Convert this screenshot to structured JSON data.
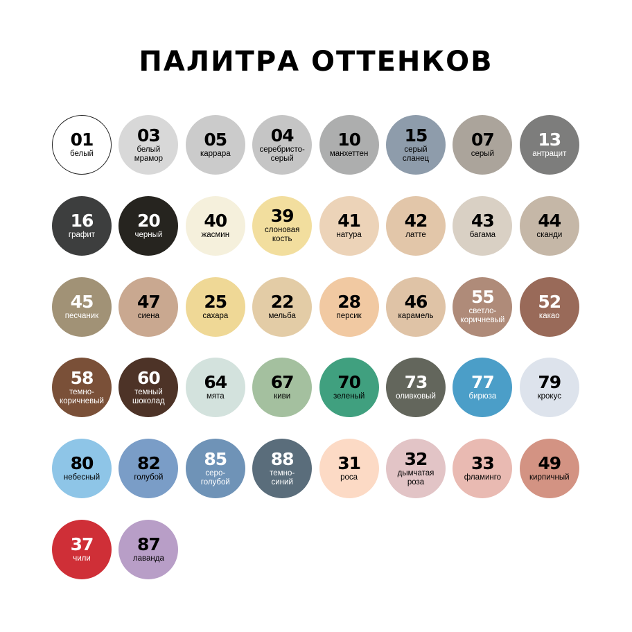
{
  "title": "ПАЛИТРА ОТТЕНКОВ",
  "swatches": [
    {
      "code": "01",
      "name": "белый",
      "color": "#ffffff",
      "text": "#000000"
    },
    {
      "code": "03",
      "name": "белый\nмрамор",
      "color": "#d8d8d8",
      "text": "#000000"
    },
    {
      "code": "05",
      "name": "каррара",
      "color": "#cbcbcb",
      "text": "#000000"
    },
    {
      "code": "04",
      "name": "серебристо-\nсерый",
      "color": "#c5c5c5",
      "text": "#000000"
    },
    {
      "code": "10",
      "name": "манхеттен",
      "color": "#adaeae",
      "text": "#000000"
    },
    {
      "code": "15",
      "name": "серый\nсланец",
      "color": "#8e9cab",
      "text": "#000000"
    },
    {
      "code": "07",
      "name": "серый",
      "color": "#aba49b",
      "text": "#000000"
    },
    {
      "code": "13",
      "name": "антрацит",
      "color": "#7d7d7c",
      "text": "#ffffff"
    },
    {
      "code": "16",
      "name": "графит",
      "color": "#3d3e3e",
      "text": "#ffffff"
    },
    {
      "code": "20",
      "name": "черный",
      "color": "#26241f",
      "text": "#ffffff"
    },
    {
      "code": "40",
      "name": "жасмин",
      "color": "#f5f0dc",
      "text": "#000000"
    },
    {
      "code": "39",
      "name": "слоновая\nкость",
      "color": "#f2de9e",
      "text": "#000000"
    },
    {
      "code": "41",
      "name": "натура",
      "color": "#ecd3b8",
      "text": "#000000"
    },
    {
      "code": "42",
      "name": "латте",
      "color": "#e2c6a9",
      "text": "#000000"
    },
    {
      "code": "43",
      "name": "багама",
      "color": "#d9d0c4",
      "text": "#000000"
    },
    {
      "code": "44",
      "name": "сканди",
      "color": "#c5b7a7",
      "text": "#000000"
    },
    {
      "code": "45",
      "name": "песчаник",
      "color": "#a19276",
      "text": "#ffffff"
    },
    {
      "code": "47",
      "name": "сиена",
      "color": "#c9a890",
      "text": "#000000"
    },
    {
      "code": "25",
      "name": "сахара",
      "color": "#efd896",
      "text": "#000000"
    },
    {
      "code": "22",
      "name": "мельба",
      "color": "#e3cca6",
      "text": "#000000"
    },
    {
      "code": "28",
      "name": "персик",
      "color": "#f1c9a2",
      "text": "#000000"
    },
    {
      "code": "46",
      "name": "карамель",
      "color": "#dfc3a6",
      "text": "#000000"
    },
    {
      "code": "55",
      "name": "светло-\nкоричневый",
      "color": "#af8b79",
      "text": "#ffffff"
    },
    {
      "code": "52",
      "name": "какао",
      "color": "#996a59",
      "text": "#ffffff"
    },
    {
      "code": "58",
      "name": "темно-\nкоричневый",
      "color": "#7a5038",
      "text": "#ffffff"
    },
    {
      "code": "60",
      "name": "темный\nшоколад",
      "color": "#4d3327",
      "text": "#ffffff"
    },
    {
      "code": "64",
      "name": "мята",
      "color": "#d3e2dd",
      "text": "#000000"
    },
    {
      "code": "67",
      "name": "киви",
      "color": "#a4c09f",
      "text": "#000000"
    },
    {
      "code": "70",
      "name": "зеленый",
      "color": "#40a07f",
      "text": "#000000"
    },
    {
      "code": "73",
      "name": "оливковый",
      "color": "#63665c",
      "text": "#ffffff"
    },
    {
      "code": "77",
      "name": "бирюза",
      "color": "#4b9ec8",
      "text": "#ffffff"
    },
    {
      "code": "79",
      "name": "крокус",
      "color": "#dde3ec",
      "text": "#000000"
    },
    {
      "code": "80",
      "name": "небесный",
      "color": "#8ec5e7",
      "text": "#000000"
    },
    {
      "code": "82",
      "name": "голубой",
      "color": "#7a9dc7",
      "text": "#000000"
    },
    {
      "code": "85",
      "name": "серо-\nголубой",
      "color": "#6f93b7",
      "text": "#ffffff"
    },
    {
      "code": "88",
      "name": "темно-\nсиний",
      "color": "#5a6d7b",
      "text": "#ffffff"
    },
    {
      "code": "31",
      "name": "роса",
      "color": "#fcdac5",
      "text": "#000000"
    },
    {
      "code": "32",
      "name": "дымчатая\nроза",
      "color": "#e2c4c6",
      "text": "#000000"
    },
    {
      "code": "33",
      "name": "фламинго",
      "color": "#e9bab2",
      "text": "#000000"
    },
    {
      "code": "49",
      "name": "кирпичный",
      "color": "#d39383",
      "text": "#000000"
    },
    {
      "code": "37",
      "name": "чили",
      "color": "#cf2f37",
      "text": "#ffffff"
    },
    {
      "code": "87",
      "name": "лаванда",
      "color": "#b89ec7",
      "text": "#000000"
    }
  ]
}
